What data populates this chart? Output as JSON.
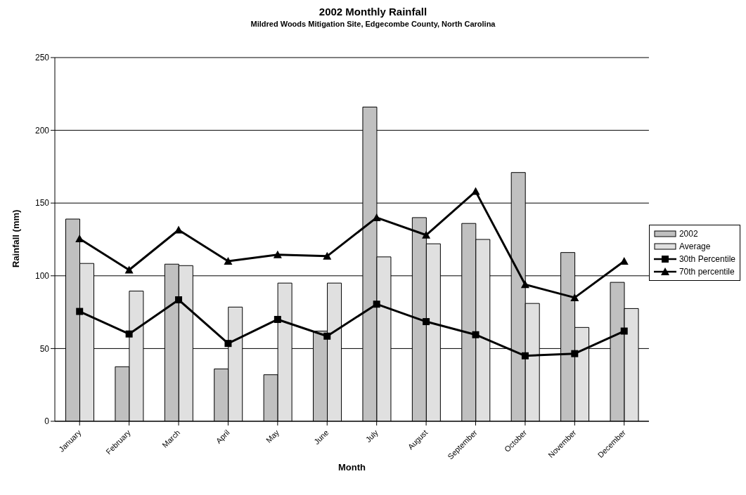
{
  "chart_data": {
    "type": "bar",
    "title": "2002 Monthly Rainfall",
    "subtitle": "Mildred Woods Mitigation Site, Edgecombe County, North Carolina",
    "xlabel": "Month",
    "ylabel": "Rainfall (mm)",
    "categories": [
      "January",
      "February",
      "March",
      "April",
      "May",
      "June",
      "July",
      "August",
      "September",
      "October",
      "November",
      "December"
    ],
    "series": [
      {
        "name": "2002",
        "color": "#c0c0c0",
        "values": [
          139,
          37.5,
          108,
          36,
          32,
          62,
          216,
          140,
          136,
          171,
          116,
          95.5
        ]
      },
      {
        "name": "Average",
        "color": "#e0e0e0",
        "values": [
          108.5,
          89.5,
          107,
          78.5,
          95,
          95,
          113,
          122,
          125,
          81,
          64.5,
          77.5
        ]
      },
      {
        "name": "30th Percentile",
        "type": "line",
        "color": "#000000",
        "marker": "square",
        "values": [
          75.5,
          60,
          83.5,
          53.5,
          70,
          58.5,
          80.5,
          68.5,
          59.5,
          45,
          46.5,
          62
        ]
      },
      {
        "name": "70th percentile",
        "type": "line",
        "color": "#000000",
        "marker": "triangle",
        "values": [
          125.5,
          104,
          131.5,
          110,
          114.5,
          113.5,
          140,
          128,
          158,
          94,
          85,
          110
        ]
      }
    ],
    "ylim": [
      0,
      250
    ],
    "yticks": [
      0,
      50,
      100,
      150,
      200,
      250
    ],
    "grid": "y",
    "legend": "right"
  }
}
